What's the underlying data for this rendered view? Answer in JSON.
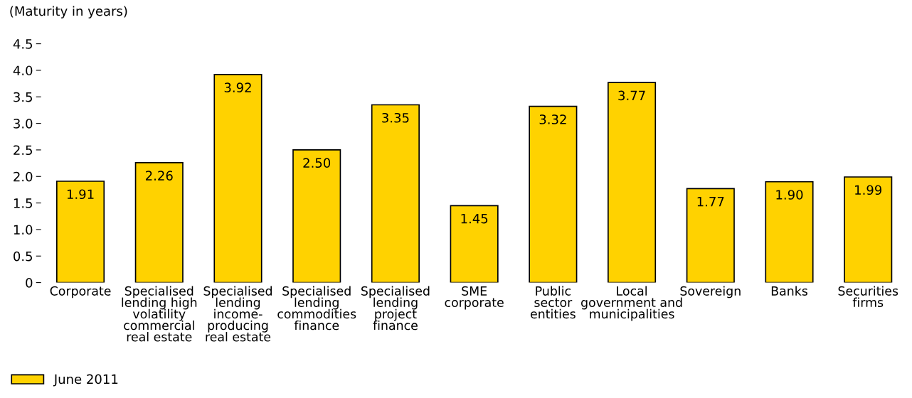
{
  "chart_data": {
    "type": "bar",
    "ylabel": "(Maturity in years)",
    "categories": [
      "Corporate",
      "Specialised\nlending high\nvolatility\ncommercial\nreal estate",
      "Specialised\nlending\nincome-\nproducing\nreal estate",
      "Specialised\nlending\ncommodities\nfinance",
      "Specialised\nlending\nproject\nfinance",
      "SME\ncorporate",
      "Public\nsector\nentities",
      "Local\ngovernment and\nmunicipalities",
      "Sovereign",
      "Banks",
      "Securities\nfirms"
    ],
    "series": [
      {
        "name": "June 2011",
        "color": "#ffd200",
        "values": [
          1.91,
          2.26,
          3.92,
          2.5,
          3.35,
          1.45,
          3.32,
          3.77,
          1.77,
          1.9,
          1.99
        ]
      }
    ],
    "value_labels": [
      "1.91",
      "2.26",
      "3.92",
      "2.50",
      "3.35",
      "1.45",
      "3.32",
      "3.77",
      "1.77",
      "1.90",
      "1.99"
    ],
    "ylim": [
      0,
      4.5
    ],
    "yticks": [
      {
        "value": 0,
        "label": "0"
      },
      0.5,
      {
        "value": 1,
        "label": "1.0"
      },
      1.5,
      {
        "value": 2,
        "label": "2.0"
      },
      2.5,
      {
        "value": 3,
        "label": "3.0"
      },
      3.5,
      {
        "value": 4,
        "label": "4.0"
      },
      4.5
    ],
    "grid": false,
    "legend": "bottom left"
  }
}
